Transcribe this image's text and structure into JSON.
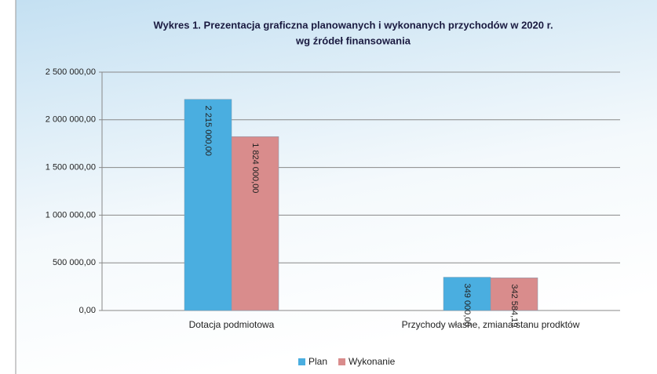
{
  "chart_data": {
    "type": "bar",
    "title": [
      "Wykres 1. Prezentacja graficzna planowanych i wykonanych przychodów w 2020 r.",
      "wg źródeł finansowania"
    ],
    "categories": [
      "Dotacja podmiotowa",
      "Przychody własne, zmiana stanu prodktów"
    ],
    "series": [
      {
        "name": "Plan",
        "color": "#4aaee0",
        "values": [
          2215000,
          349000
        ],
        "value_labels": [
          "2 215 000,00",
          "349 000,00"
        ]
      },
      {
        "name": "Wykonanie",
        "color": "#d98c8c",
        "values": [
          1824000,
          342584.19
        ],
        "value_labels": [
          "1 824 000,00",
          "342 584,19"
        ]
      }
    ],
    "ylim": [
      0,
      2500000
    ],
    "yticks": [
      {
        "value": 0,
        "label": "0,00"
      },
      {
        "value": 500000,
        "label": "500 000,00"
      },
      {
        "value": 1000000,
        "label": "1 000 000,00"
      },
      {
        "value": 1500000,
        "label": "1 500 000,00"
      },
      {
        "value": 2000000,
        "label": "2 000 000,00"
      },
      {
        "value": 2500000,
        "label": "2 500 000,00"
      }
    ],
    "grid": true,
    "legend": "bottom"
  }
}
